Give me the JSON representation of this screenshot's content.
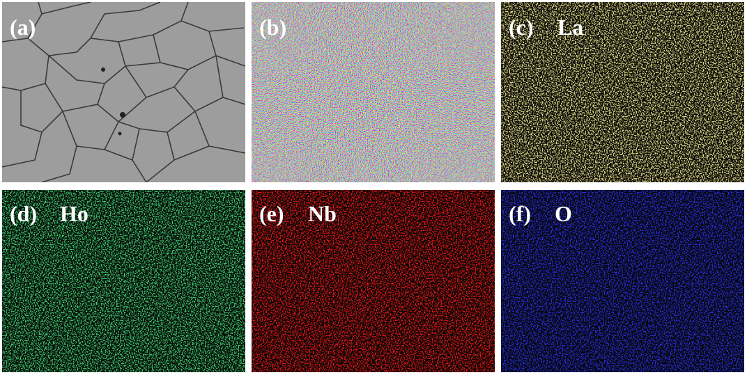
{
  "panels": [
    {
      "label": "(a)"
    },
    {
      "label": "(b)"
    },
    {
      "label": "(c)",
      "element": "La"
    },
    {
      "label": "(d)",
      "element": "Ho"
    },
    {
      "label": "(e)",
      "element": "Nb"
    },
    {
      "label": "(f)",
      "element": "O"
    }
  ]
}
